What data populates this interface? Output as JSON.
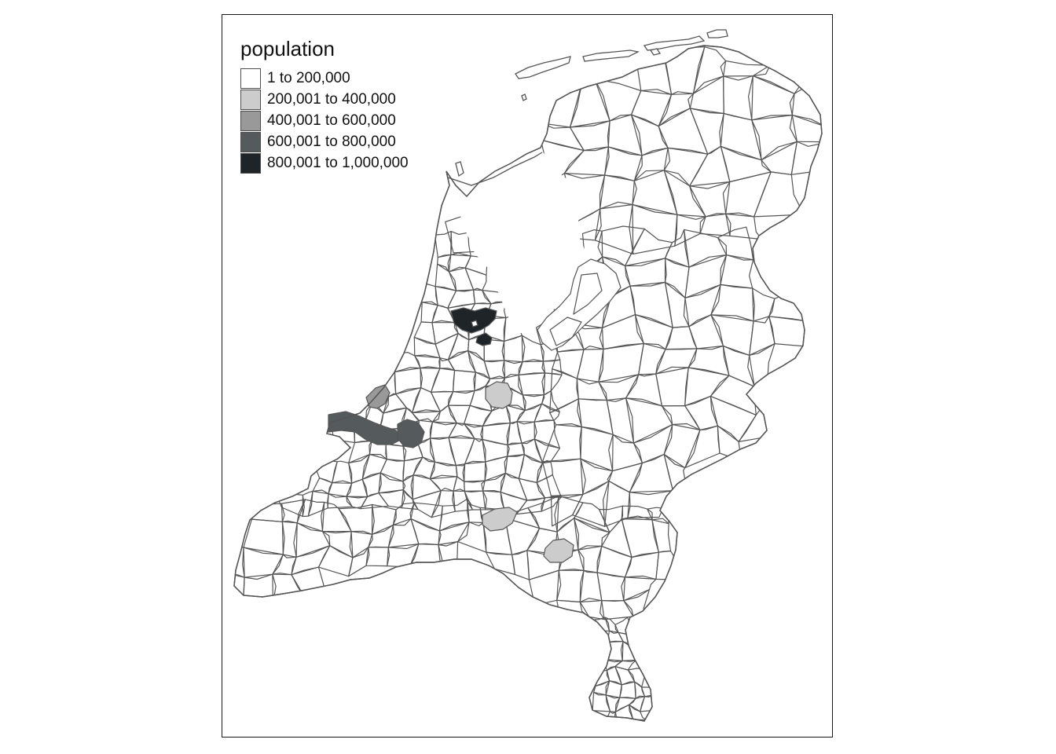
{
  "map": {
    "legend": {
      "title": "population",
      "items": [
        {
          "label": "1 to 200,000",
          "color": "#ffffff"
        },
        {
          "label": "200,001 to 400,000",
          "color": "#cccccc"
        },
        {
          "label": "400,001 to 600,000",
          "color": "#999999"
        },
        {
          "label": "600,001 to 800,000",
          "color": "#555a5c"
        },
        {
          "label": "800,001 to 1,000,000",
          "color": "#1e2427"
        }
      ]
    },
    "colors": {
      "border": "#555555",
      "frame": "#1a1a1a",
      "background": "#ffffff"
    },
    "highlighted_municipalities": [
      {
        "id": "amsterdam",
        "class": 4
      },
      {
        "id": "amsterdam-south",
        "class": 4
      },
      {
        "id": "rotterdam-port",
        "class": 3
      },
      {
        "id": "rotterdam-city",
        "class": 3
      },
      {
        "id": "the-hague",
        "class": 2
      },
      {
        "id": "utrecht",
        "class": 1
      },
      {
        "id": "tilburg",
        "class": 1
      },
      {
        "id": "eindhoven",
        "class": 1
      }
    ]
  }
}
